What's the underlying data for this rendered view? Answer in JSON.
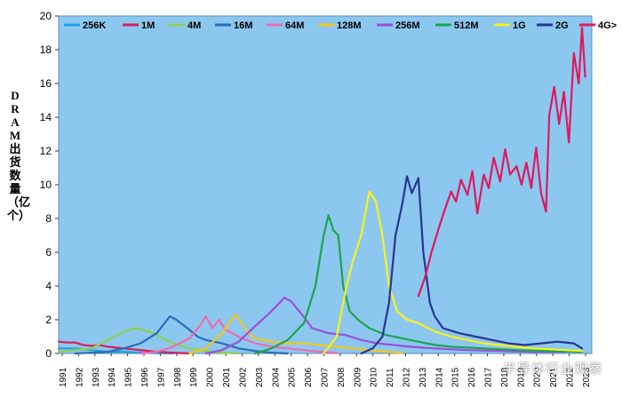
{
  "chart_data": {
    "type": "line",
    "title": "",
    "ylabel": "DRAM 出货数量（亿个）",
    "xlabel": "",
    "ylim": [
      0,
      20
    ],
    "yticks": [
      "0",
      "2",
      "4",
      "6",
      "8",
      "10",
      "12",
      "14",
      "16",
      "18",
      "20"
    ],
    "xticks": [
      "1991",
      "1992",
      "1993",
      "1994",
      "1995",
      "1996",
      "1997",
      "1998",
      "1999",
      "2000",
      "2001",
      "2002",
      "2003",
      "2004",
      "2005",
      "2006",
      "2007",
      "2008",
      "2009",
      "2010",
      "2011",
      "2012",
      "2013",
      "2014",
      "2015",
      "2016",
      "2017",
      "2018",
      "2019",
      "2020",
      "2021",
      "2022",
      "2023"
    ],
    "grid": false,
    "legend_position": "top",
    "series": [
      {
        "name": "256K",
        "color": "#1fa3e0",
        "points": [
          [
            1991,
            0.3
          ],
          [
            1992,
            0.3
          ],
          [
            1993,
            0.2
          ],
          [
            1994,
            0.1
          ],
          [
            1995,
            0.1
          ],
          [
            1996,
            0.05
          ],
          [
            1997,
            0.02
          ],
          [
            1998,
            0.0
          ]
        ]
      },
      {
        "name": "1M",
        "color": "#d8205a",
        "points": [
          [
            1991,
            0.7
          ],
          [
            1991.5,
            0.65
          ],
          [
            1992,
            0.65
          ],
          [
            1992.5,
            0.5
          ],
          [
            1993,
            0.45
          ],
          [
            1993.5,
            0.5
          ],
          [
            1994,
            0.4
          ],
          [
            1994.5,
            0.35
          ],
          [
            1995,
            0.3
          ],
          [
            1996,
            0.2
          ],
          [
            1997,
            0.1
          ],
          [
            1998,
            0.05
          ],
          [
            1999,
            0.0
          ]
        ]
      },
      {
        "name": "4M",
        "color": "#8fd14f",
        "points": [
          [
            1991,
            0.1
          ],
          [
            1992,
            0.2
          ],
          [
            1993,
            0.3
          ],
          [
            1994,
            0.8
          ],
          [
            1995,
            1.3
          ],
          [
            1995.8,
            1.5
          ],
          [
            1996.5,
            1.3
          ],
          [
            1997,
            1.1
          ],
          [
            1998,
            0.6
          ],
          [
            1999,
            0.3
          ],
          [
            2000,
            0.15
          ],
          [
            2001,
            0.05
          ],
          [
            2002,
            0.0
          ]
        ]
      },
      {
        "name": "16M",
        "color": "#2a6db8",
        "points": [
          [
            1992,
            0.0
          ],
          [
            1993,
            0.05
          ],
          [
            1994,
            0.1
          ],
          [
            1995,
            0.3
          ],
          [
            1996,
            0.6
          ],
          [
            1997,
            1.2
          ],
          [
            1997.8,
            2.2
          ],
          [
            1998.2,
            2.0
          ],
          [
            1998.6,
            1.7
          ],
          [
            1999,
            1.4
          ],
          [
            1999.5,
            1.0
          ],
          [
            2000,
            0.8
          ],
          [
            2001,
            0.6
          ],
          [
            2002,
            0.3
          ],
          [
            2003,
            0.15
          ],
          [
            2004,
            0.05
          ],
          [
            2005,
            0.0
          ]
        ]
      },
      {
        "name": "64M",
        "color": "#f06ab0",
        "points": [
          [
            1996,
            0.0
          ],
          [
            1997,
            0.1
          ],
          [
            1998,
            0.4
          ],
          [
            1999,
            0.9
          ],
          [
            1999.6,
            1.6
          ],
          [
            2000,
            2.2
          ],
          [
            2000.4,
            1.5
          ],
          [
            2000.8,
            2.0
          ],
          [
            2001.2,
            1.4
          ],
          [
            2002,
            1.0
          ],
          [
            2003,
            0.6
          ],
          [
            2004,
            0.4
          ],
          [
            2005,
            0.3
          ],
          [
            2006,
            0.2
          ],
          [
            2007,
            0.1
          ],
          [
            2008,
            0.05
          ]
        ]
      },
      {
        "name": "128M",
        "color": "#f5c518",
        "points": [
          [
            1999,
            0.0
          ],
          [
            2000,
            0.3
          ],
          [
            2001,
            1.2
          ],
          [
            2001.8,
            2.3
          ],
          [
            2002.2,
            1.8
          ],
          [
            2002.6,
            1.2
          ],
          [
            2003,
            0.9
          ],
          [
            2004,
            0.7
          ],
          [
            2005,
            0.6
          ],
          [
            2006,
            0.6
          ],
          [
            2007,
            0.5
          ],
          [
            2008,
            0.4
          ],
          [
            2009,
            0.3
          ],
          [
            2010,
            0.2
          ],
          [
            2011,
            0.1
          ],
          [
            2012,
            0.05
          ]
        ]
      },
      {
        "name": "256M",
        "color": "#9b4fd8",
        "points": [
          [
            2000,
            0.0
          ],
          [
            2001,
            0.2
          ],
          [
            2002,
            0.7
          ],
          [
            2003,
            1.6
          ],
          [
            2004,
            2.5
          ],
          [
            2004.8,
            3.3
          ],
          [
            2005.2,
            3.1
          ],
          [
            2005.8,
            2.4
          ],
          [
            2006.5,
            1.5
          ],
          [
            2007.5,
            1.2
          ],
          [
            2008.5,
            1.1
          ],
          [
            2009.5,
            0.8
          ],
          [
            2010.5,
            0.6
          ],
          [
            2011.5,
            0.5
          ],
          [
            2012.5,
            0.4
          ],
          [
            2014,
            0.3
          ],
          [
            2016,
            0.2
          ],
          [
            2018,
            0.15
          ],
          [
            2020,
            0.1
          ],
          [
            2022,
            0.1
          ]
        ]
      },
      {
        "name": "512M",
        "color": "#1aa64a",
        "points": [
          [
            2003,
            0.0
          ],
          [
            2004,
            0.3
          ],
          [
            2005,
            0.8
          ],
          [
            2006,
            1.8
          ],
          [
            2006.7,
            4.0
          ],
          [
            2007.2,
            7.0
          ],
          [
            2007.5,
            8.2
          ],
          [
            2007.8,
            7.3
          ],
          [
            2008.1,
            7.0
          ],
          [
            2008.4,
            4.0
          ],
          [
            2008.8,
            2.5
          ],
          [
            2009.3,
            2.0
          ],
          [
            2010,
            1.5
          ],
          [
            2011,
            1.1
          ],
          [
            2012,
            0.9
          ],
          [
            2013,
            0.7
          ],
          [
            2014,
            0.5
          ],
          [
            2015,
            0.4
          ],
          [
            2017,
            0.3
          ],
          [
            2019,
            0.2
          ],
          [
            2021,
            0.15
          ],
          [
            2023,
            0.1
          ]
        ]
      },
      {
        "name": "1G",
        "color": "#f7f21a",
        "points": [
          [
            2007.2,
            0.0
          ],
          [
            2008,
            1.0
          ],
          [
            2008.6,
            4.0
          ],
          [
            2009,
            5.5
          ],
          [
            2009.5,
            7.0
          ],
          [
            2010,
            9.6
          ],
          [
            2010.4,
            9.0
          ],
          [
            2010.8,
            7.0
          ],
          [
            2011.2,
            4.0
          ],
          [
            2011.7,
            2.5
          ],
          [
            2012.3,
            2.0
          ],
          [
            2013,
            1.8
          ],
          [
            2014,
            1.3
          ],
          [
            2015,
            1.0
          ],
          [
            2016,
            0.8
          ],
          [
            2017,
            0.6
          ],
          [
            2018,
            0.5
          ],
          [
            2019,
            0.4
          ],
          [
            2020,
            0.3
          ],
          [
            2022,
            0.2
          ],
          [
            2023,
            0.15
          ]
        ]
      },
      {
        "name": "2G",
        "color": "#283593",
        "points": [
          [
            2009.5,
            0.0
          ],
          [
            2010.2,
            0.3
          ],
          [
            2010.8,
            1.0
          ],
          [
            2011.2,
            3.0
          ],
          [
            2011.6,
            7.0
          ],
          [
            2012,
            8.8
          ],
          [
            2012.3,
            10.5
          ],
          [
            2012.6,
            9.5
          ],
          [
            2013,
            10.4
          ],
          [
            2013.3,
            6.0
          ],
          [
            2013.7,
            3.0
          ],
          [
            2014,
            2.2
          ],
          [
            2014.5,
            1.5
          ],
          [
            2015.5,
            1.2
          ],
          [
            2016.5,
            1.0
          ],
          [
            2017.5,
            0.8
          ],
          [
            2018.5,
            0.6
          ],
          [
            2019.5,
            0.5
          ],
          [
            2020.5,
            0.6
          ],
          [
            2021.5,
            0.7
          ],
          [
            2022.5,
            0.6
          ],
          [
            2023,
            0.3
          ]
        ]
      },
      {
        "name": "4G>",
        "color": "#e0185c",
        "points": [
          [
            2013.0,
            3.4
          ],
          [
            2013.4,
            4.5
          ],
          [
            2013.8,
            6.0
          ],
          [
            2014.2,
            7.3
          ],
          [
            2014.6,
            8.5
          ],
          [
            2015.0,
            9.6
          ],
          [
            2015.3,
            9.0
          ],
          [
            2015.6,
            10.3
          ],
          [
            2016.0,
            9.4
          ],
          [
            2016.3,
            10.8
          ],
          [
            2016.6,
            8.3
          ],
          [
            2017.0,
            10.6
          ],
          [
            2017.3,
            9.8
          ],
          [
            2017.6,
            11.6
          ],
          [
            2018.0,
            10.2
          ],
          [
            2018.3,
            12.1
          ],
          [
            2018.6,
            10.6
          ],
          [
            2019.0,
            11.1
          ],
          [
            2019.3,
            10.0
          ],
          [
            2019.6,
            11.3
          ],
          [
            2019.9,
            9.8
          ],
          [
            2020.2,
            12.2
          ],
          [
            2020.5,
            9.5
          ],
          [
            2020.8,
            8.4
          ],
          [
            2021.0,
            14.1
          ],
          [
            2021.3,
            15.8
          ],
          [
            2021.6,
            13.6
          ],
          [
            2021.9,
            15.5
          ],
          [
            2022.2,
            12.5
          ],
          [
            2022.5,
            17.8
          ],
          [
            2022.8,
            16.0
          ],
          [
            2023.0,
            19.3
          ],
          [
            2023.2,
            16.4
          ]
        ]
      }
    ]
  },
  "watermark": "半导体行业观察"
}
